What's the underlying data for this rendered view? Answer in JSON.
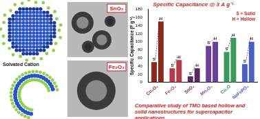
{
  "chart_data": {
    "type": "bar",
    "title": "Specific Capacitance @ 3 A g⁻¹",
    "y_label": "Specific Capacitance (F g⁻¹)",
    "categories": [
      "Co₃O₄",
      "Fe₃O₄",
      "SnO₂",
      "Mn₃O₄",
      "Cu₂O",
      "NaFePO₄"
    ],
    "series": [
      {
        "name": "S",
        "colors": [
          "#8b2a1c",
          "#b23a4a",
          "#5a2a5c",
          "#6b3f9c",
          "#3a9a5a",
          "#4a5fc1"
        ],
        "values": [
          50,
          35,
          15,
          90,
          75,
          45
        ]
      },
      {
        "name": "H",
        "colors": [
          "#8b2a1c",
          "#b23a4a",
          "#5a2a5c",
          "#6b3f9c",
          "#3a9a5a",
          "#4a5fc1"
        ],
        "values": [
          150,
          55,
          35,
          100,
          110,
          100
        ]
      }
    ],
    "annotations": [
      "S ≡ Solid",
      "H ≡ Hollow"
    ],
    "ylim": [
      0,
      180
    ],
    "yticks": [
      0,
      20,
      40,
      60,
      80,
      100,
      120,
      140,
      160,
      180
    ],
    "grid": false
  },
  "figure": {
    "labels": {
      "cation": "Solvated Cation",
      "tem_top": "SnO₂",
      "tem_bottom": "Fe₂O₃"
    },
    "caption": "Comparative study of TMO based hollow and solid nanostructures for supercapacitor applications"
  }
}
